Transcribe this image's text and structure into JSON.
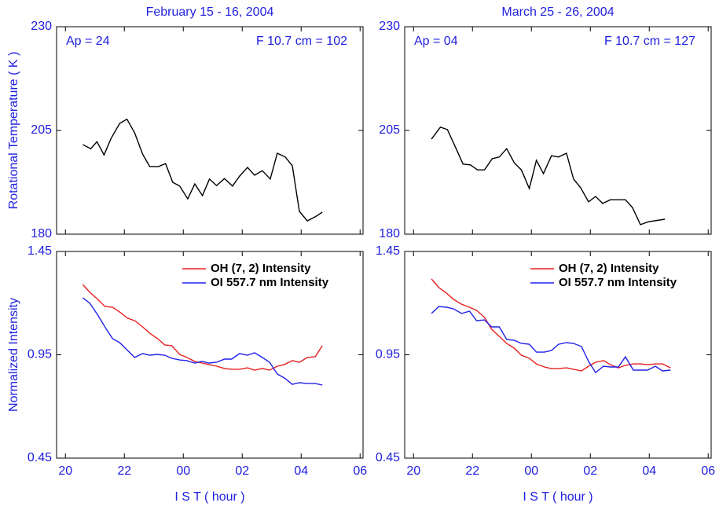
{
  "chart_data": [
    {
      "type": "line",
      "title": "February 15 - 16, 2004",
      "annotations": [
        "Ap = 24",
        "F 10.7 cm = 102"
      ],
      "ylabel": "Rotational Temperature ( K )",
      "xlim": [
        19.7,
        30.1
      ],
      "xticks": [
        20,
        22,
        24,
        26,
        28,
        30
      ],
      "ylim": [
        180,
        230
      ],
      "yticks": [
        180,
        205,
        230
      ],
      "x": [
        20.59,
        20.86,
        21.07,
        21.31,
        21.55,
        21.84,
        22.09,
        22.35,
        22.62,
        22.86,
        23.16,
        23.4,
        23.64,
        23.88,
        24.15,
        24.39,
        24.65,
        24.89,
        25.13,
        25.4,
        25.67,
        25.91,
        26.18,
        26.42,
        26.68,
        26.95,
        27.19,
        27.46,
        27.7,
        27.94,
        28.21,
        28.48,
        28.72
      ],
      "series": [
        {
          "color": "#000000",
          "values": [
            201.6,
            200.6,
            202.3,
            199.1,
            203.1,
            206.7,
            207.7,
            204.4,
            199.3,
            196.3,
            196.3,
            197.0,
            192.5,
            191.6,
            188.5,
            192.1,
            189.3,
            193.3,
            191.7,
            193.4,
            191.6,
            194.0,
            196.1,
            194.2,
            195.3,
            193.3,
            199.5,
            198.6,
            196.5,
            185.5,
            183.2,
            184.2,
            185.3
          ]
        }
      ]
    },
    {
      "type": "line",
      "title": "March 25 - 26, 2004",
      "annotations": [
        "Ap = 04",
        "F 10.7 cm = 127"
      ],
      "xlim": [
        19.7,
        30.1
      ],
      "xticks": [
        20,
        22,
        24,
        26,
        28,
        30
      ],
      "ylim": [
        180,
        230
      ],
      "yticks": [
        180,
        205,
        230
      ],
      "x": [
        20.61,
        20.91,
        21.15,
        21.42,
        21.68,
        21.93,
        22.17,
        22.41,
        22.67,
        22.91,
        23.16,
        23.42,
        23.66,
        23.93,
        24.17,
        24.41,
        24.68,
        24.92,
        25.19,
        25.43,
        25.67,
        25.94,
        26.18,
        26.42,
        26.68,
        26.93,
        27.19,
        27.43,
        27.7,
        27.97,
        28.53
      ],
      "series": [
        {
          "color": "#000000",
          "values": [
            202.9,
            205.8,
            205.2,
            201.0,
            196.9,
            196.7,
            195.5,
            195.5,
            198.2,
            198.6,
            200.6,
            197.2,
            195.5,
            191.0,
            197.8,
            194.6,
            198.9,
            198.6,
            199.5,
            193.3,
            191.2,
            187.8,
            189.1,
            187.4,
            188.3,
            188.3,
            188.3,
            186.4,
            182.3,
            183.0,
            183.6
          ]
        }
      ]
    },
    {
      "type": "line",
      "ylabel": "Normalized Intensity",
      "xlabel": "I S T ( hour )",
      "legend": "upper right",
      "xlim": [
        19.7,
        30.1
      ],
      "xticks": [
        20,
        22,
        {
          "value": 24,
          "label": "00"
        },
        {
          "value": 26,
          "label": "02"
        },
        {
          "value": 28,
          "label": "04"
        },
        {
          "value": 30,
          "label": "06"
        }
      ],
      "ylim": [
        0.45,
        1.45
      ],
      "yticks": [
        0.45,
        0.95,
        1.45
      ],
      "x": [
        20.59,
        20.83,
        21.1,
        21.34,
        21.6,
        21.84,
        22.11,
        22.35,
        22.62,
        22.86,
        23.13,
        23.37,
        23.61,
        23.88,
        24.12,
        24.39,
        24.63,
        24.87,
        25.13,
        25.4,
        25.64,
        25.91,
        26.18,
        26.42,
        26.68,
        26.93,
        27.19,
        27.43,
        27.7,
        27.94,
        28.21,
        28.48,
        28.72
      ],
      "series": [
        {
          "name": "OH (7, 2) Intensity",
          "color": "#e82020",
          "values": [
            1.29,
            1.252,
            1.218,
            1.184,
            1.18,
            1.157,
            1.127,
            1.115,
            1.085,
            1.055,
            1.028,
            0.998,
            0.994,
            0.952,
            0.937,
            0.918,
            0.91,
            0.903,
            0.895,
            0.884,
            0.88,
            0.88,
            0.887,
            0.876,
            0.884,
            0.876,
            0.895,
            0.903,
            0.922,
            0.914,
            0.937,
            0.941,
            0.994
          ]
        },
        {
          "name": "OI 557.7 nm Intensity",
          "color": "#2020e8",
          "values": [
            1.226,
            1.199,
            1.142,
            1.085,
            1.028,
            1.009,
            0.971,
            0.937,
            0.956,
            0.948,
            0.952,
            0.948,
            0.933,
            0.925,
            0.922,
            0.91,
            0.918,
            0.91,
            0.914,
            0.929,
            0.929,
            0.956,
            0.948,
            0.96,
            0.937,
            0.914,
            0.857,
            0.838,
            0.807,
            0.815,
            0.811,
            0.811,
            0.804
          ]
        }
      ]
    },
    {
      "type": "line",
      "xlabel": "I S T ( hour )",
      "legend": "upper right",
      "xlim": [
        19.7,
        30.1
      ],
      "xticks": [
        20,
        22,
        {
          "value": 24,
          "label": "00"
        },
        {
          "value": 26,
          "label": "02"
        },
        {
          "value": 28,
          "label": "04"
        },
        {
          "value": 30,
          "label": "06"
        }
      ],
      "ylim": [
        0.45,
        1.45
      ],
      "yticks": [
        0.45,
        0.95,
        1.45
      ],
      "x": [
        20.61,
        20.86,
        21.12,
        21.36,
        21.63,
        21.9,
        22.14,
        22.41,
        22.65,
        22.91,
        23.16,
        23.42,
        23.66,
        23.93,
        24.17,
        24.44,
        24.68,
        24.92,
        25.19,
        25.43,
        25.7,
        25.94,
        26.18,
        26.45,
        26.68,
        26.95,
        27.19,
        27.46,
        27.7,
        27.94,
        28.21,
        28.45,
        28.72
      ],
      "series": [
        {
          "name": "OH (7, 2) Intensity",
          "color": "#e82020",
          "values": [
            1.317,
            1.275,
            1.248,
            1.218,
            1.195,
            1.18,
            1.165,
            1.131,
            1.074,
            1.039,
            1.005,
            0.982,
            0.948,
            0.933,
            0.906,
            0.891,
            0.883,
            0.883,
            0.887,
            0.88,
            0.872,
            0.895,
            0.914,
            0.922,
            0.902,
            0.887,
            0.899,
            0.906,
            0.906,
            0.902,
            0.906,
            0.906,
            0.887
          ]
        },
        {
          "name": "OI 557.7 nm Intensity",
          "color": "#2020e8",
          "values": [
            1.15,
            1.184,
            1.18,
            1.172,
            1.15,
            1.161,
            1.115,
            1.119,
            1.085,
            1.085,
            1.024,
            1.02,
            1.005,
            1.001,
            0.963,
            0.963,
            0.971,
            1.001,
            1.009,
            1.005,
            0.99,
            0.918,
            0.864,
            0.895,
            0.891,
            0.891,
            0.94,
            0.876,
            0.876,
            0.876,
            0.895,
            0.872,
            0.876
          ]
        }
      ]
    }
  ]
}
